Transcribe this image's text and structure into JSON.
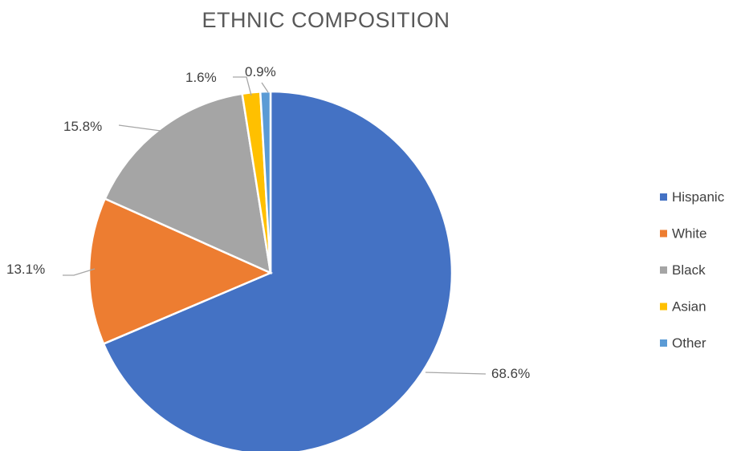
{
  "chart_data": {
    "type": "pie",
    "title": "ETHNIC COMPOSITION",
    "categories": [
      "Hispanic",
      "White",
      "Black",
      "Asian",
      "Other"
    ],
    "values": [
      68.6,
      13.1,
      15.8,
      1.6,
      0.9
    ],
    "data_labels": [
      "68.6%",
      "13.1%",
      "15.8%",
      "1.6%",
      "0.9%"
    ],
    "colors": [
      "#4472c4",
      "#ed7d31",
      "#a5a5a5",
      "#ffc000",
      "#5b9bd5"
    ],
    "legend_placement": "right"
  }
}
